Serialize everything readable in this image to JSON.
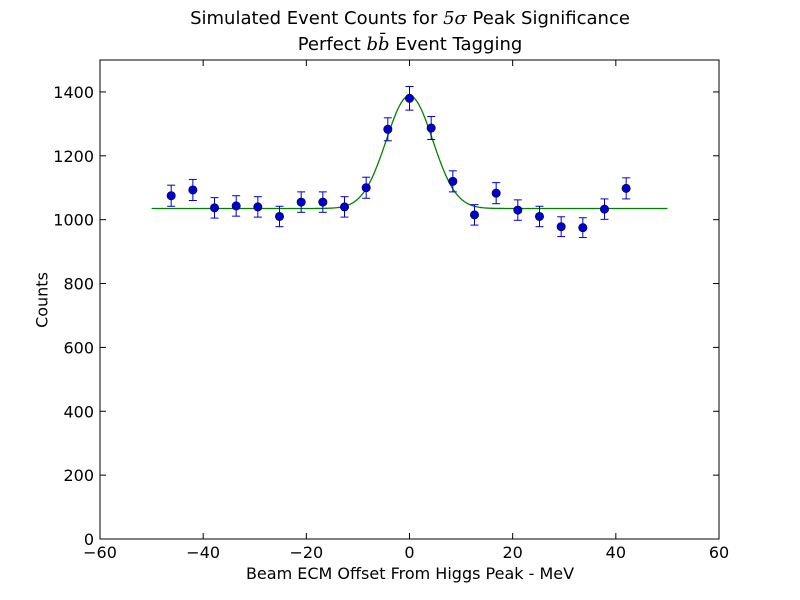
{
  "chart_data": {
    "type": "scatter",
    "title": {
      "line1_prefix": "Simulated Event Counts for ",
      "line1_math": "5σ",
      "line1_suffix": " Peak Significance",
      "line2_prefix": "Perfect ",
      "line2_math": "bb̄",
      "line2_suffix": " Event Tagging"
    },
    "xlabel": "Beam ECM Offset From Higgs Peak - MeV",
    "ylabel": "Counts",
    "xlim": [
      -60,
      60
    ],
    "ylim": [
      0,
      1500
    ],
    "xticks": [
      -60,
      -40,
      -20,
      0,
      20,
      40,
      60
    ],
    "xtick_labels": [
      "−60",
      "−40",
      "−20",
      "0",
      "20",
      "40",
      "60"
    ],
    "yticks": [
      0,
      200,
      400,
      600,
      800,
      1000,
      1200,
      1400
    ],
    "ytick_labels": [
      "0",
      "200",
      "400",
      "600",
      "800",
      "1000",
      "1200",
      "1400"
    ],
    "grid": false,
    "legend": "none",
    "series": [
      {
        "kind": "points_with_errorbars",
        "color": "#0000cc",
        "x": [
          -46.2,
          -42.0,
          -37.8,
          -33.6,
          -29.4,
          -25.2,
          -21.0,
          -16.8,
          -12.6,
          -8.4,
          -4.2,
          0.0,
          4.2,
          8.4,
          12.6,
          16.8,
          21.0,
          25.2,
          29.4,
          33.6,
          37.8,
          42.0
        ],
        "y": [
          1075,
          1093,
          1037,
          1043,
          1040,
          1010,
          1055,
          1055,
          1040,
          1100,
          1283,
          1380,
          1287,
          1120,
          1015,
          1083,
          1030,
          1010,
          978,
          975,
          1033,
          1098
        ],
        "yerr": [
          33,
          33,
          32,
          32,
          32,
          32,
          32,
          32,
          32,
          33,
          36,
          37,
          36,
          33,
          32,
          33,
          32,
          32,
          31,
          31,
          32,
          33
        ]
      },
      {
        "kind": "fit_curve",
        "color": "#008000",
        "model": "gaussian_plus_constant",
        "x_range": [
          -50,
          50
        ],
        "baseline": 1035,
        "amplitude": 353,
        "mean": 0,
        "sigma": 4.5
      }
    ]
  }
}
